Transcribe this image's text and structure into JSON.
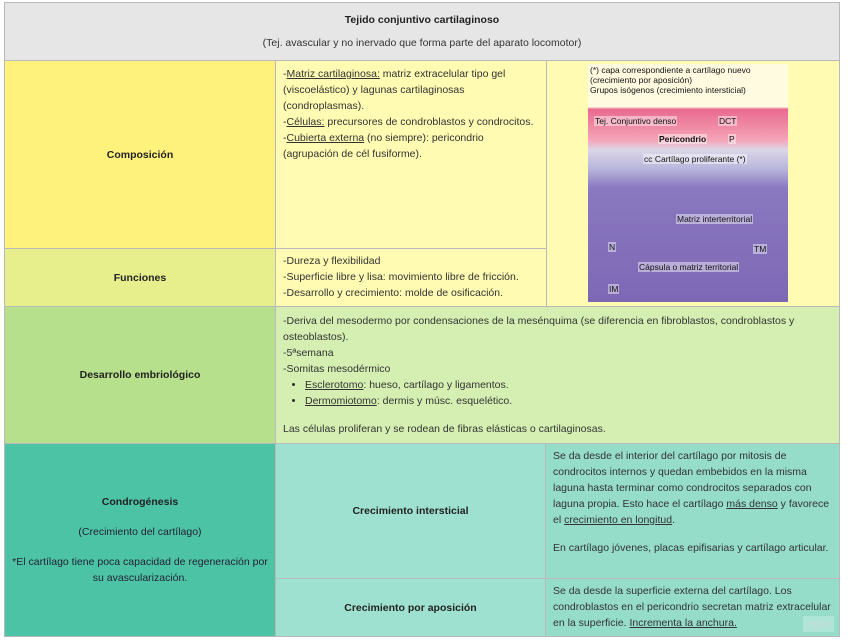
{
  "title": "Tejido conjuntivo cartilaginoso",
  "subtitle": "(Tej. avascular y no inervado que forma parte del aparato locomotor)",
  "composicion": {
    "label": "Composición",
    "l1u": "Matriz cartilaginosa:",
    "l1": " matriz extracelular tipo gel (viscoelástico) y lagunas cartilaginosas (condroplasmas).",
    "l2u": "Células:",
    "l2": " precursores de condroblastos y condrocitos.",
    "l3u": "Cubierta externa",
    "l3": " (no siempre): pericondrio (agrupación de cél fusiforme)."
  },
  "funciones": {
    "label": "Funciones",
    "items": [
      "-Dureza y flexibilidad",
      "-Superficie libre y lisa: movimiento libre de fricción.",
      "-Desarrollo y crecimiento: molde de osificación."
    ]
  },
  "image": {
    "caption1": "(*) capa correspondiente a cartílago nuevo (crecimiento por aposición)",
    "caption2": "Grupos isógenos (crecimiento intersticial)",
    "t1": "Tej. Conjuntivo denso",
    "t1b": "DCT",
    "t2": "Pericondrio",
    "t2b": "P",
    "t3": "cc Cartílago proliferante (*)",
    "t4": "Matriz interterritorial",
    "t5": "Cápsula o matriz territorial",
    "t6": "TM",
    "t7": "IM",
    "t8": "N"
  },
  "desarrollo": {
    "label": "Desarrollo embriológico",
    "l1": "-Deriva del mesodermo por condensaciones de la mesénquima (se diferencia en fibroblastos, condroblastos y osteoblastos).",
    "l2": "-5ªsemana",
    "l3": "-Somitas mesodérmico",
    "b1u": "Esclerotomo",
    "b1": ": hueso, cartílago y ligamentos.",
    "b2u": "Dermomiotomo",
    "b2": ": dermis y músc. esquelético.",
    "l4": "Las células proliferan y se rodean de fibras elásticas o cartilaginosas."
  },
  "condrogenesis": {
    "label": "Condrogénesis",
    "sub": "(Crecimiento del cartílago)",
    "note": "*El cartílago tiene poca capacidad de regeneración por su avascularización.",
    "inter": {
      "label": "Crecimiento intersticial",
      "t1": "Se da desde el interior del cartílago por mitosis de condrocitos internos y quedan embebidos en la misma laguna hasta terminar como condrocitos separados con laguna propia. Esto hace el cartílago ",
      "u1": "más denso",
      "t2": " y favorece el ",
      "u2": "crecimiento en longitud",
      "t3": ".",
      "t4": "En cartílago jóvenes, placas epifisarias y cartílago articular."
    },
    "apos": {
      "label": "Crecimiento por aposición",
      "t1": "Se da desde la superficie externa del cartílago. Los condroblastos en el pericondrio secretan matriz extracelular en la superficie. ",
      "u1": "Incrementa la anchura."
    }
  },
  "watermark": "miro",
  "colors": {
    "header": "#e6e6e6",
    "yellow": "#fff27c",
    "paleYellow": "#fffbb2",
    "lime": "#e7ef8d",
    "green": "#b7e08c",
    "paleGreen": "#d5efb2",
    "teal": "#4dc3a5",
    "paleTeal": "#9fe1d0"
  }
}
